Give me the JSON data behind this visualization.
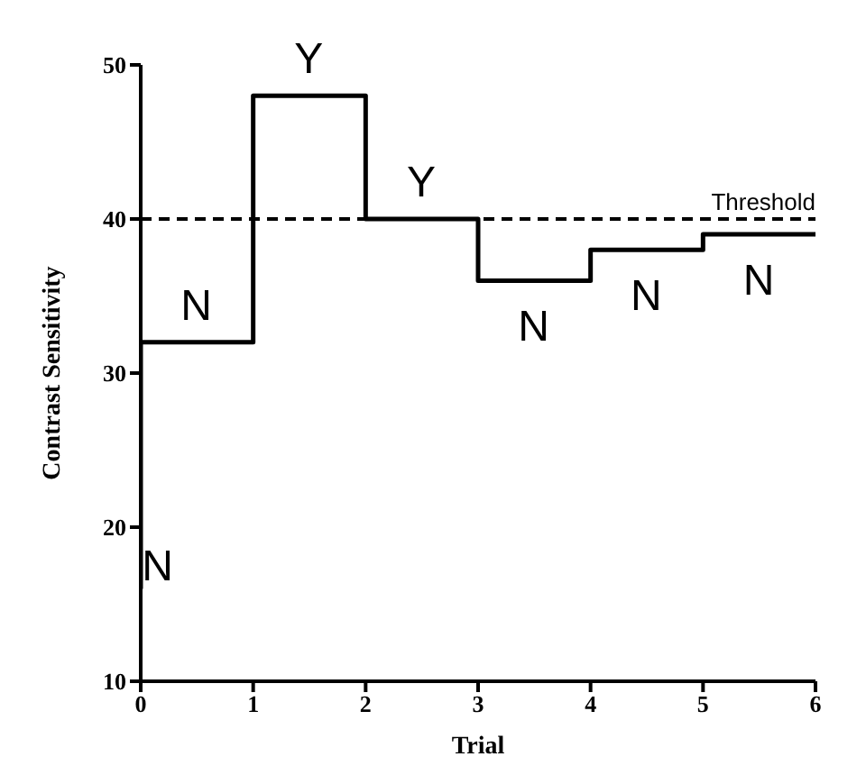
{
  "chart_data": {
    "type": "step",
    "xlabel": "Trial",
    "ylabel": "Contrast Sensitivity",
    "x": [
      0,
      0,
      1,
      2,
      3,
      4,
      5,
      6
    ],
    "series": [
      {
        "color": "#000000",
        "values": [
          16,
          32,
          48,
          40,
          36,
          38,
          39,
          39
        ]
      }
    ],
    "xlim": [
      0,
      6
    ],
    "xticks": [
      0,
      1,
      2,
      3,
      4,
      5,
      6
    ],
    "ylim": [
      10,
      50
    ],
    "yticks": [
      10,
      20,
      30,
      40,
      50
    ],
    "grid": false,
    "legend": false,
    "marker": "none",
    "line_style": "solid",
    "ref_lines": [
      {
        "axis": "y",
        "value": 40,
        "label": "Threshold",
        "color": "#000000",
        "line_style": "dashed"
      }
    ],
    "annotations": [
      {
        "text": "N",
        "x": 0,
        "y": 16
      },
      {
        "text": "N",
        "x": 0,
        "y": 32
      },
      {
        "text": "Y",
        "x": 1,
        "y": 48
      },
      {
        "text": "Y",
        "x": 2,
        "y": 40
      },
      {
        "text": "N",
        "x": 3,
        "y": 36
      },
      {
        "text": "N",
        "x": 4,
        "y": 38
      },
      {
        "text": "N",
        "x": 5,
        "y": 39
      }
    ]
  }
}
